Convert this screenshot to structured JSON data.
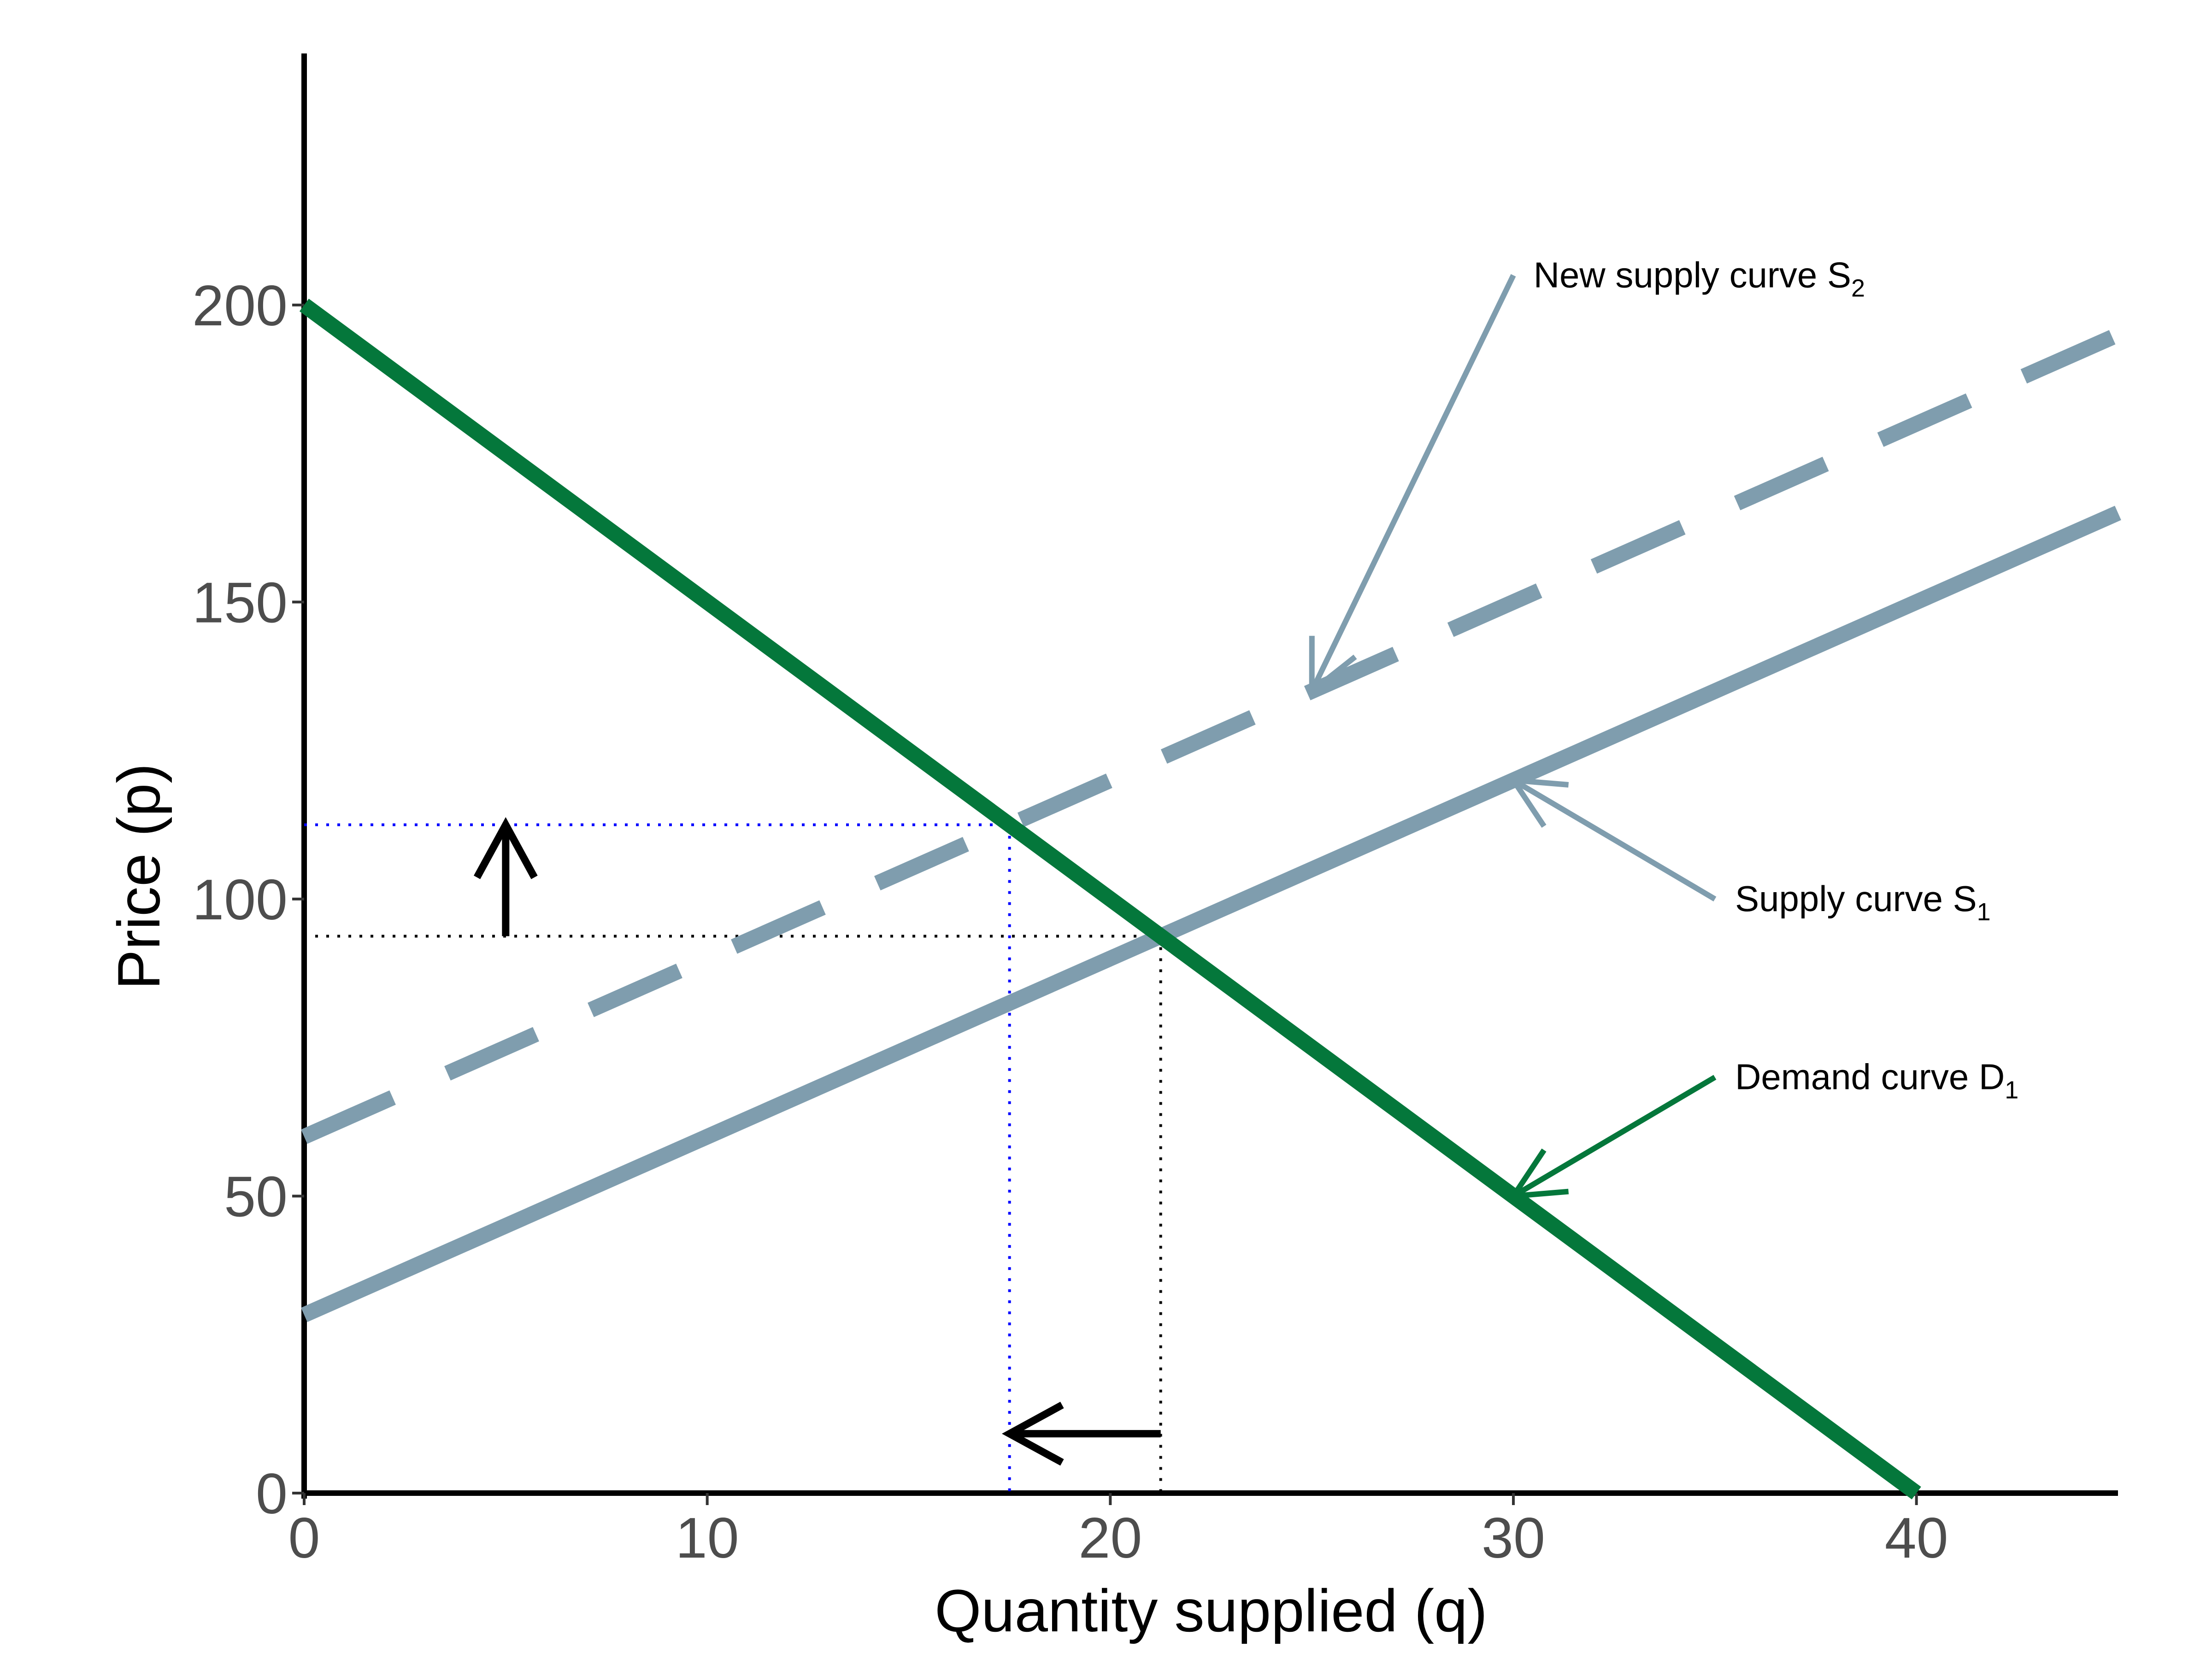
{
  "chart_data": {
    "type": "line",
    "title": "",
    "xlabel": "Quantity supplied (q)",
    "ylabel": "Price (p)",
    "xlim": [
      0,
      45
    ],
    "ylim": [
      0,
      220
    ],
    "xticks": [
      0,
      10,
      20,
      30,
      40
    ],
    "yticks": [
      0,
      50,
      100,
      150,
      200
    ],
    "xtick_labels": [
      "0",
      "10",
      "20",
      "30",
      "40"
    ],
    "ytick_labels": [
      "0",
      "50",
      "100",
      "150",
      "200"
    ],
    "grid": false,
    "series": [
      {
        "name": "Demand curve D1",
        "color": "#04773B",
        "style": "solid",
        "x": [
          0,
          40
        ],
        "y": [
          200,
          0
        ]
      },
      {
        "name": "Supply curve S1",
        "color": "#7F9DAE",
        "style": "solid",
        "x": [
          0,
          45
        ],
        "y": [
          30,
          165
        ]
      },
      {
        "name": "New supply curve S2",
        "color": "#7F9DAE",
        "style": "dashed",
        "x": [
          0,
          45
        ],
        "y": [
          60,
          195
        ]
      }
    ],
    "guides": [
      {
        "color": "#000000",
        "x": 21.25,
        "y": 93.75
      },
      {
        "color": "#0000FF",
        "x": 17.5,
        "y": 112.5
      }
    ],
    "shift_arrows": [
      {
        "from": [
          5,
          93.75
        ],
        "to": [
          5,
          112.5
        ]
      },
      {
        "from": [
          21.25,
          10
        ],
        "to": [
          17.5,
          10
        ]
      }
    ],
    "annotations": [
      {
        "text": "New supply curve S",
        "sub": "2",
        "text_at": [
          30.5,
          205
        ],
        "arrow_from": [
          30,
          205
        ],
        "arrow_to": [
          25,
          135
        ],
        "color": "#7F9DAE"
      },
      {
        "text": "Supply curve S",
        "sub": "1",
        "text_at": [
          35.5,
          100
        ],
        "arrow_from": [
          35,
          100
        ],
        "arrow_to": [
          30,
          120
        ],
        "color": "#7F9DAE"
      },
      {
        "text": "Demand curve D",
        "sub": "1",
        "text_at": [
          35.5,
          70
        ],
        "arrow_from": [
          35,
          70
        ],
        "arrow_to": [
          30,
          50
        ],
        "color": "#04773B"
      }
    ]
  }
}
